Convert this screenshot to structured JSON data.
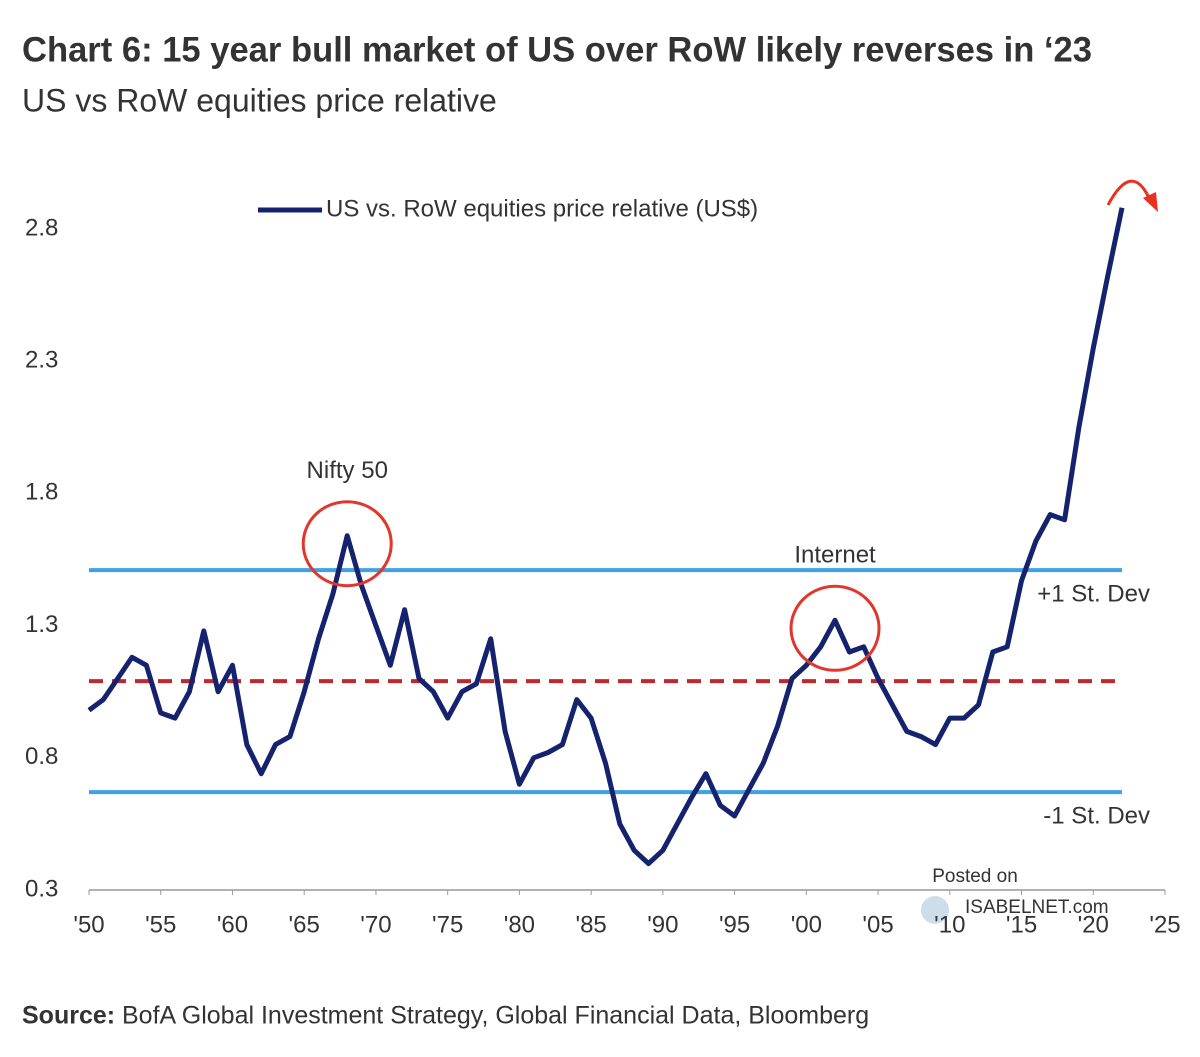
{
  "chart_data": {
    "type": "line",
    "title": "Chart 6: 15 year bull market of US over RoW likely reverses in ‘23",
    "subtitle": "US vs RoW equities price relative",
    "source_label": "Source:",
    "source": "BofA Global Investment Strategy, Global Financial Data, Bloomberg",
    "watermark": [
      "Posted on",
      "ISABELNET.com"
    ],
    "x": [
      1950,
      1951,
      1952,
      1953,
      1954,
      1955,
      1956,
      1957,
      1958,
      1959,
      1960,
      1961,
      1962,
      1963,
      1964,
      1965,
      1966,
      1967,
      1968,
      1969,
      1970,
      1971,
      1972,
      1973,
      1974,
      1975,
      1976,
      1977,
      1978,
      1979,
      1980,
      1981,
      1982,
      1983,
      1984,
      1985,
      1986,
      1987,
      1988,
      1989,
      1990,
      1991,
      1992,
      1993,
      1994,
      1995,
      1996,
      1997,
      1998,
      1999,
      2000,
      2001,
      2002,
      2003,
      2004,
      2005,
      2006,
      2007,
      2008,
      2009,
      2010,
      2011,
      2012,
      2013,
      2014,
      2015,
      2016,
      2017,
      2018,
      2019,
      2020,
      2021,
      2022
    ],
    "series": [
      {
        "name": "US vs. RoW equities price relative (US$)",
        "color": "#15226e",
        "values": [
          0.98,
          1.02,
          1.1,
          1.18,
          1.15,
          0.97,
          0.95,
          1.05,
          1.28,
          1.05,
          1.15,
          0.85,
          0.74,
          0.85,
          0.88,
          1.05,
          1.25,
          1.42,
          1.64,
          1.45,
          1.3,
          1.15,
          1.36,
          1.1,
          1.05,
          0.95,
          1.05,
          1.08,
          1.25,
          0.9,
          0.7,
          0.8,
          0.82,
          0.85,
          1.02,
          0.95,
          0.78,
          0.55,
          0.45,
          0.4,
          0.45,
          0.55,
          0.65,
          0.74,
          0.62,
          0.58,
          0.68,
          0.78,
          0.92,
          1.1,
          1.15,
          1.22,
          1.32,
          1.2,
          1.22,
          1.1,
          1.0,
          0.9,
          0.88,
          0.85,
          0.95,
          0.95,
          1.0,
          1.2,
          1.22,
          1.47,
          1.62,
          1.72,
          1.7,
          2.05,
          2.35,
          2.62,
          2.88
        ]
      }
    ],
    "reference_lines": [
      {
        "value": 1.51,
        "color": "#3fa0e2",
        "style": "solid",
        "label": "+1 St. Dev"
      },
      {
        "value": 1.09,
        "color": "#c1272d",
        "style": "dashed"
      },
      {
        "value": 0.67,
        "color": "#3fa0e2",
        "style": "solid",
        "label": "-1 St. Dev"
      }
    ],
    "annotations": [
      {
        "text": "Nifty 50",
        "x": 1968
      },
      {
        "text": "Internet",
        "x": 2002
      }
    ],
    "xlim": [
      1950,
      2025
    ],
    "xticks": [
      {
        "value": 1950,
        "label": "'50"
      },
      {
        "value": 1955,
        "label": "'55"
      },
      {
        "value": 1960,
        "label": "'60"
      },
      {
        "value": 1965,
        "label": "'65"
      },
      {
        "value": 1970,
        "label": "'70"
      },
      {
        "value": 1975,
        "label": "'75"
      },
      {
        "value": 1980,
        "label": "'80"
      },
      {
        "value": 1985,
        "label": "'85"
      },
      {
        "value": 1990,
        "label": "'90"
      },
      {
        "value": 1995,
        "label": "'95"
      },
      {
        "value": 2000,
        "label": "'00"
      },
      {
        "value": 2005,
        "label": "'05"
      },
      {
        "value": 2010,
        "label": "'10"
      },
      {
        "value": 2015,
        "label": "'15"
      },
      {
        "value": 2020,
        "label": "'20"
      },
      {
        "value": 2025,
        "label": "'25"
      }
    ],
    "ylim": [
      0.3,
      3.0
    ],
    "yticks": [
      0.3,
      0.8,
      1.3,
      1.8,
      2.3,
      2.8
    ],
    "legend": "top"
  }
}
